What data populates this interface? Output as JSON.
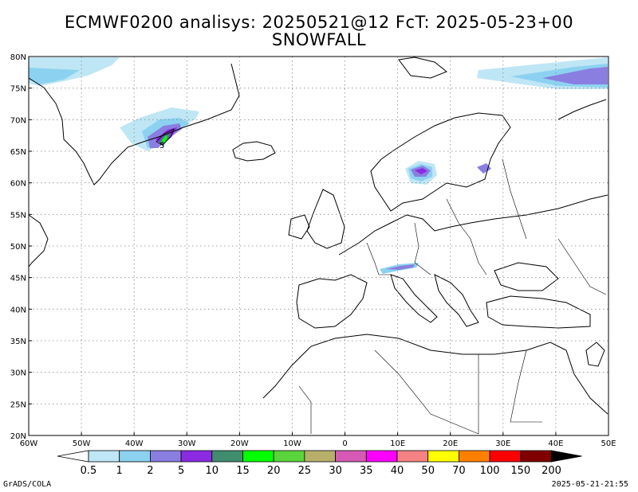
{
  "title_line1": "ECMWF0200 analisys: 20250521@12 FcT: 2025-05-23+00",
  "title_line2": "SNOWFALL",
  "map": {
    "lat_labels": [
      "80N",
      "75N",
      "70N",
      "65N",
      "60N",
      "55N",
      "50N",
      "45N",
      "40N",
      "35N",
      "30N",
      "25N",
      "20N"
    ],
    "lon_labels": [
      "60W",
      "50W",
      "40W",
      "30W",
      "20W",
      "10W",
      "0",
      "10E",
      "20E",
      "30E",
      "40E",
      "50E"
    ],
    "lat_range": [
      20,
      80
    ],
    "lon_range": [
      -60,
      50
    ],
    "grid": "dotted",
    "contour_label": "5"
  },
  "legend": {
    "labels": [
      "0.5",
      "1",
      "2",
      "5",
      "10",
      "15",
      "20",
      "25",
      "30",
      "35",
      "40",
      "50",
      "70",
      "100",
      "150",
      "200"
    ],
    "colors": [
      "#ffffff",
      "#bfe6f5",
      "#8cd2f0",
      "#8a7ee0",
      "#8a2be2",
      "#3f8c6e",
      "#00ff00",
      "#5ad43c",
      "#b8b06a",
      "#d65ab4",
      "#ff00ff",
      "#f58282",
      "#ffff00",
      "#ff8000",
      "#ff0000",
      "#800000",
      "#000000"
    ]
  },
  "footer": {
    "left": "GrADS/COLA",
    "right": "2025-05-21-21:55"
  }
}
